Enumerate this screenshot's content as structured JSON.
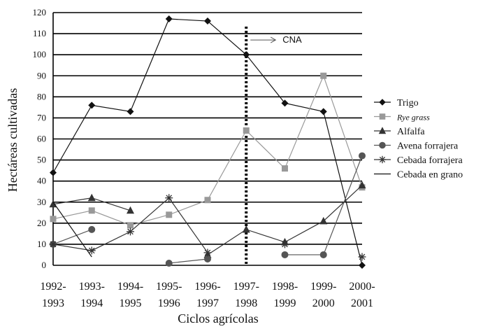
{
  "chart_data": {
    "type": "line",
    "title": "",
    "xlabel": "Ciclos agrícolas",
    "ylabel": "Hectáreas cultivadas",
    "ylim": [
      0,
      120
    ],
    "yticks": [
      0,
      10,
      20,
      30,
      40,
      50,
      60,
      70,
      80,
      90,
      100,
      110,
      120
    ],
    "grid": "horizontal",
    "legend_position": "right",
    "categories": [
      {
        "top": "1992-",
        "bottom": "1993"
      },
      {
        "top": "1993-",
        "bottom": "1994"
      },
      {
        "top": "1994-",
        "bottom": "1995"
      },
      {
        "top": "1995-",
        "bottom": "1996"
      },
      {
        "top": "1996-",
        "bottom": "1997"
      },
      {
        "top": "1997-",
        "bottom": "1998"
      },
      {
        "top": "1998-",
        "bottom": "1999"
      },
      {
        "top": "1999-",
        "bottom": "2000"
      },
      {
        "top": "2000-",
        "bottom": "2001"
      }
    ],
    "series": [
      {
        "name": "Trigo",
        "marker": "diamond",
        "color": "#111111",
        "values": [
          44,
          76,
          73,
          117,
          116,
          100,
          77,
          73,
          0
        ]
      },
      {
        "name": "Rye grass",
        "italic": true,
        "marker": "square",
        "color": "#999999",
        "values": [
          22,
          26,
          19,
          24,
          31,
          64,
          46,
          90,
          37
        ]
      },
      {
        "name": "Alfalfa",
        "marker": "triangle",
        "color": "#333333",
        "values": [
          29,
          32,
          26,
          null,
          5,
          17,
          11,
          21,
          38
        ]
      },
      {
        "name": "Avena forrajera",
        "marker": "circle",
        "color": "#555555",
        "values": [
          10,
          17,
          null,
          1,
          3,
          null,
          5,
          5,
          52
        ]
      },
      {
        "name": "Cebada forrajera",
        "marker": "star",
        "color": "#333333",
        "values": [
          10,
          7,
          16,
          32,
          6,
          null,
          10,
          null,
          4
        ]
      },
      {
        "name": "Cebada en grano",
        "marker": "none",
        "color": "#111111",
        "values": [
          30,
          4,
          null,
          null,
          null,
          null,
          null,
          null,
          null
        ]
      }
    ],
    "annotations": [
      {
        "text": "CNA",
        "category_index": 5,
        "y": 107,
        "style": "dotted vertical line with arrow"
      }
    ]
  }
}
